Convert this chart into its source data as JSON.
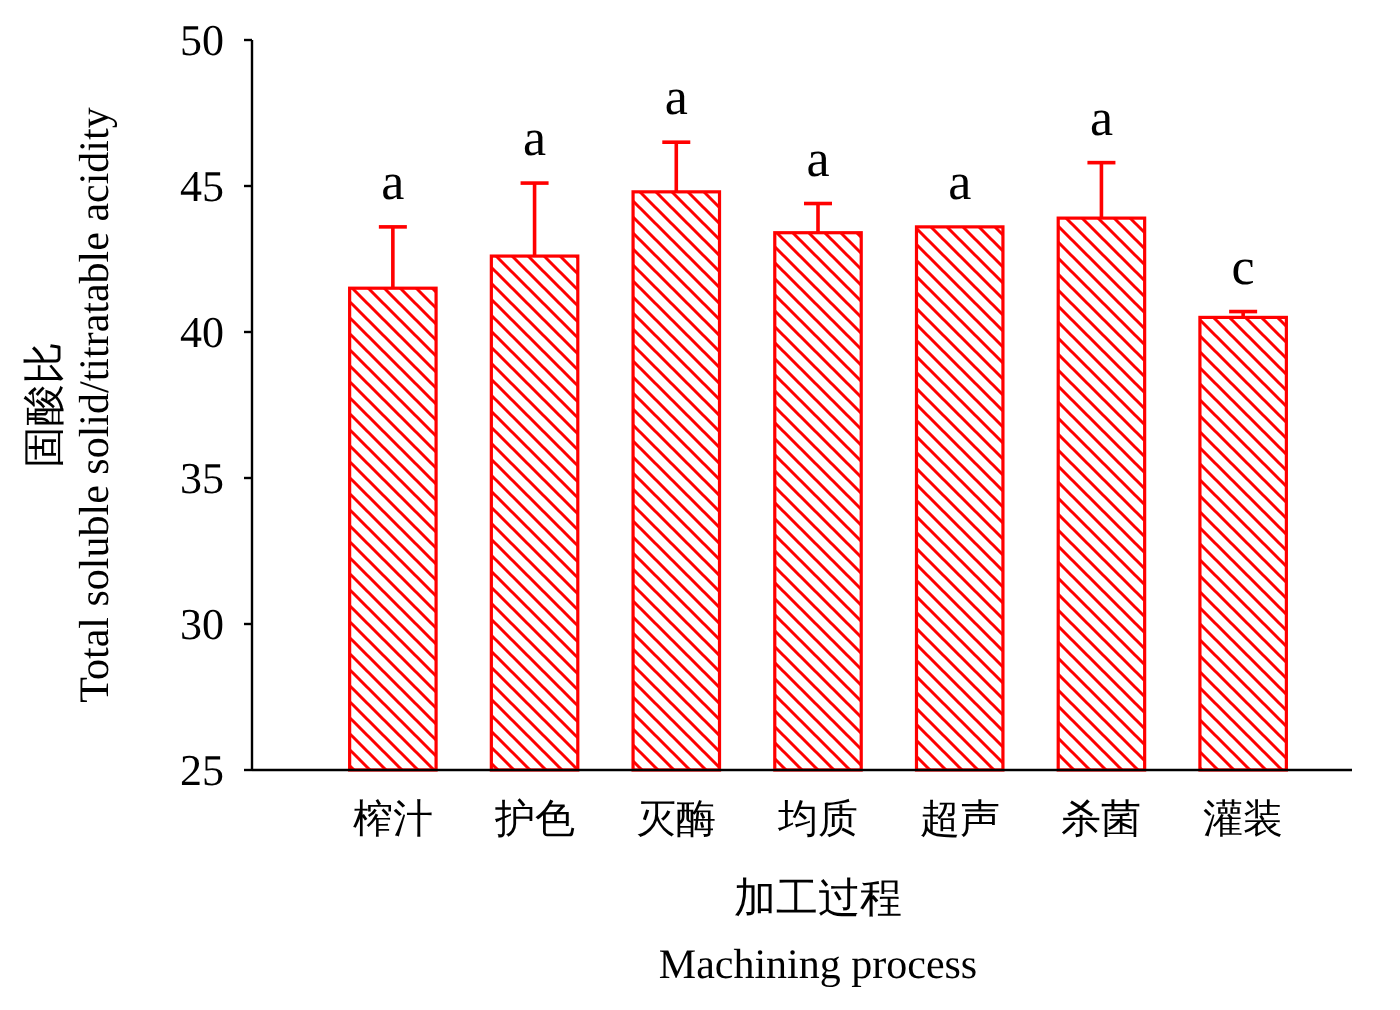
{
  "chart_data": {
    "type": "bar",
    "xlabel": "加工过程\nMachining process",
    "ylabel": "固酸比\nTotal soluble solid/titratable acidity",
    "categories": [
      "榨汁",
      "护色",
      "灭酶",
      "均质",
      "超声",
      "杀菌",
      "灌装"
    ],
    "values": [
      41.5,
      42.6,
      44.8,
      43.4,
      43.6,
      43.9,
      40.5
    ],
    "errors": [
      2.1,
      2.5,
      1.7,
      1.0,
      null,
      1.9,
      0.2
    ],
    "color": "#ff0000",
    "ylim": [
      25,
      50
    ],
    "yticks": [
      25,
      30,
      35,
      40,
      45,
      50
    ],
    "annotations": [
      "a",
      "a",
      "a",
      "a",
      "a",
      "a",
      "c"
    ]
  }
}
